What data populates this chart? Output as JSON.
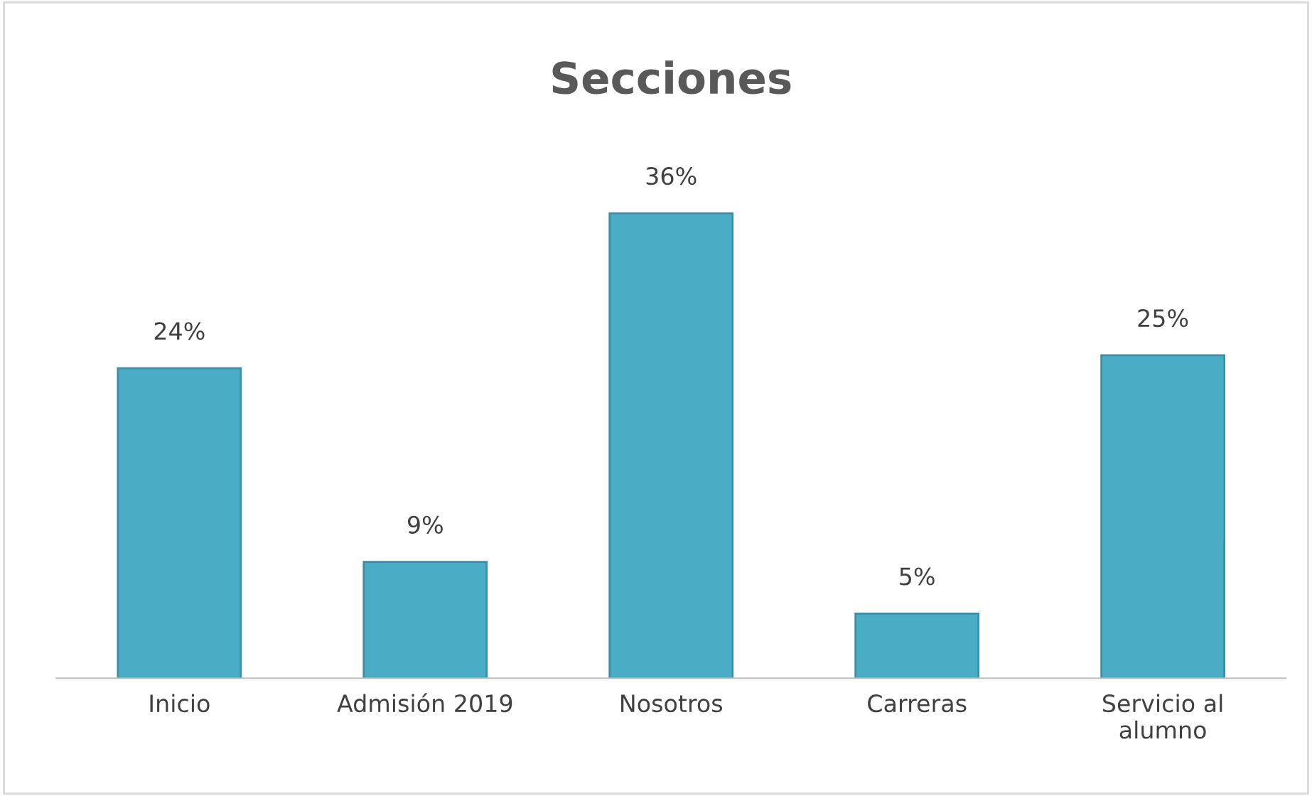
{
  "chart_data": {
    "type": "bar",
    "title": "Secciones",
    "categories": [
      "Inicio",
      "Admisión 2019",
      "Nosotros",
      "Carreras",
      "Servicio al\nalumno"
    ],
    "values": [
      24,
      9,
      36,
      5,
      25
    ],
    "value_labels": [
      "24%",
      "9%",
      "36%",
      "5%",
      "25%"
    ],
    "color": "#4bacc6",
    "grid": false,
    "legend": false
  }
}
